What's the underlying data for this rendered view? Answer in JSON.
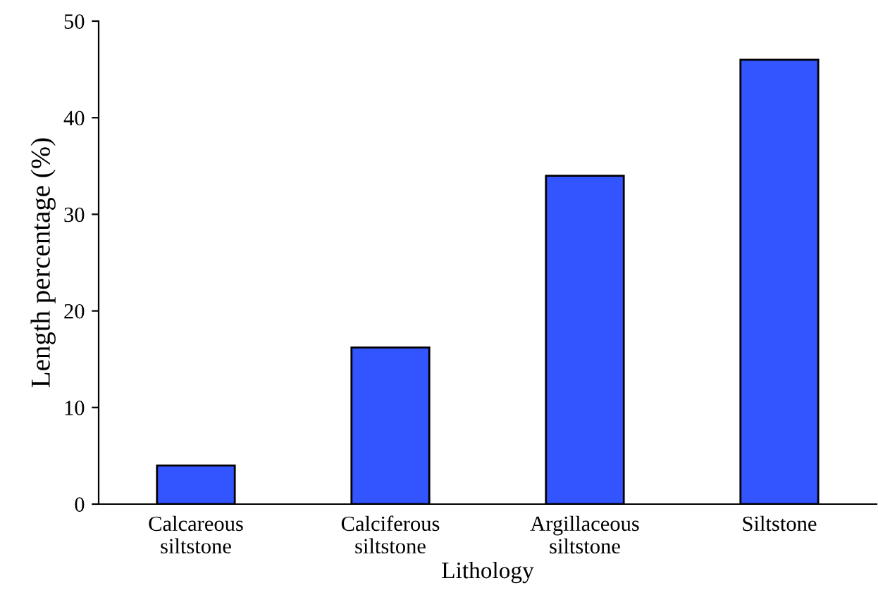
{
  "chart_data": {
    "type": "bar",
    "xlabel": "Lithology",
    "ylabel": "Length percentage (%)",
    "categories": [
      "Calcareous\nsiltstone",
      "Calciferous\nsiltstone",
      "Argillaceous\nsiltstone",
      "Siltstone"
    ],
    "values": [
      4,
      16.2,
      34,
      46
    ],
    "color": "#3355ff",
    "ylim": [
      0,
      50
    ],
    "yticks": [
      0,
      10,
      20,
      30,
      40,
      50
    ],
    "grid": false,
    "legend": false
  }
}
